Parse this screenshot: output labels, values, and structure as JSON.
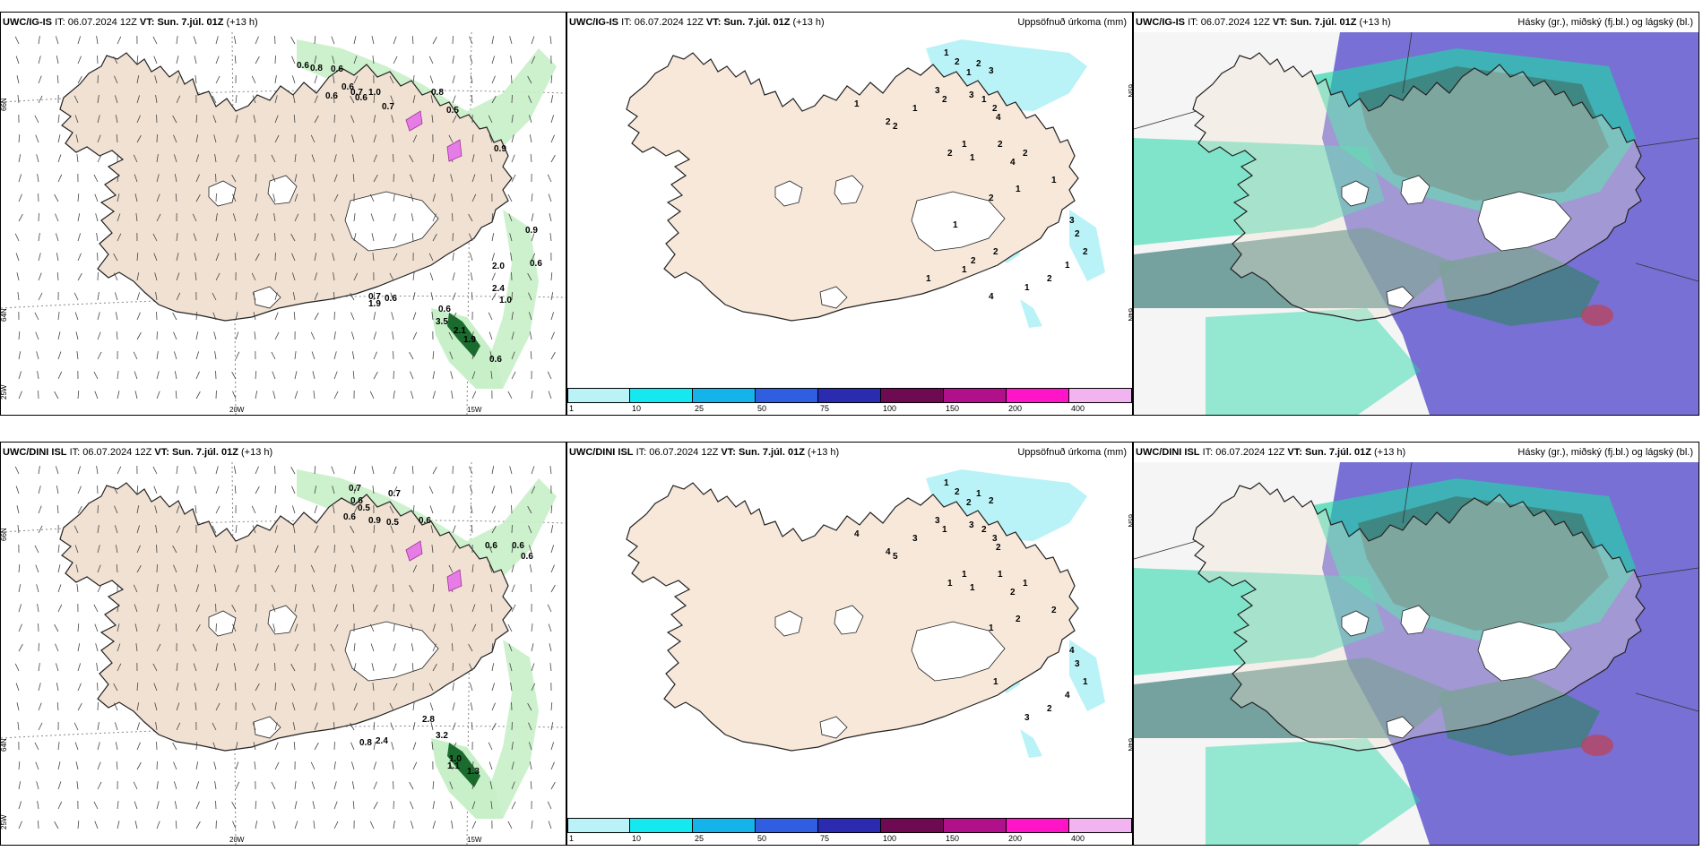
{
  "panels": [
    {
      "model": "UWC/IG-IS",
      "it_label": "IT:",
      "it_value": "06.07.2024 12Z",
      "vt_label": "VT:",
      "vt_value": "Sun. 7.júl. 01Z",
      "lead": "(+13 h)",
      "right_title": "",
      "kind": "wind",
      "lat_labels": [
        "66N",
        "64N",
        "25W"
      ],
      "lon_labels": [
        "20W",
        "15W"
      ],
      "values": [
        "0.6",
        "0.8",
        "0.6",
        "0.6",
        "0.7",
        "0.6",
        "0.6",
        "1.0",
        "0.7",
        "0.8",
        "0.5",
        "0.9",
        "0.9",
        "2.0",
        "0.6",
        "2.4",
        "1.0",
        "0.7",
        "0.6",
        "1.9",
        "0.6",
        "3.5",
        "2.1",
        "1.9",
        "0.6"
      ]
    },
    {
      "model": "UWC/IG-IS",
      "it_label": "IT:",
      "it_value": "06.07.2024 12Z",
      "vt_label": "VT:",
      "vt_value": "Sun. 7.júl. 01Z",
      "lead": "(+13 h)",
      "right_title": "Uppsöfnuð úrkoma (mm)",
      "kind": "precip",
      "lat_labels": [
        "65N",
        "64N"
      ],
      "values": [
        "1",
        "2",
        "1",
        "2",
        "3",
        "3",
        "1",
        "2",
        "3",
        "2",
        "4",
        "1",
        "2",
        "1",
        "2",
        "1",
        "2",
        "1",
        "2",
        "4",
        "2",
        "1",
        "1",
        "2",
        "3",
        "2",
        "2",
        "1",
        "2",
        "1",
        "2",
        "2",
        "1",
        "1",
        "4",
        "1"
      ]
    },
    {
      "model": "UWC/IG-IS",
      "it_label": "IT:",
      "it_value": "06.07.2024 12Z",
      "vt_label": "VT:",
      "vt_value": "Sun. 7.júl. 01Z",
      "lead": "(+13 h)",
      "right_title": "Hásky (gr.), miðský (fj.bl.) og lágský (bl.)",
      "kind": "cloud"
    },
    {
      "model": "UWC/DINI ISL",
      "it_label": "IT:",
      "it_value": "06.07.2024 12Z",
      "vt_label": "VT:",
      "vt_value": "Sun. 7.júl. 01Z",
      "lead": "(+13 h)",
      "right_title": "",
      "kind": "wind",
      "lat_labels": [
        "66N",
        "64N",
        "25W"
      ],
      "lon_labels": [
        "20W",
        "15W"
      ],
      "values": [
        "0.7",
        "0.7",
        "0.6",
        "0.5",
        "0.6",
        "0.9",
        "0.5",
        "0.6",
        "0.6",
        "0.6",
        "0.6",
        "0.8",
        "2.4",
        "2.8",
        "3.2",
        "1.0",
        "1.1",
        "1.3"
      ]
    },
    {
      "model": "UWC/DINI ISL",
      "it_label": "IT:",
      "it_value": "06.07.2024 12Z",
      "vt_label": "VT:",
      "vt_value": "Sun. 7.júl. 01Z",
      "lead": "(+13 h)",
      "right_title": "Uppsöfnuð úrkoma (mm)",
      "kind": "precip",
      "lat_labels": [
        "65N",
        "64N"
      ],
      "values": [
        "1",
        "2",
        "2",
        "1",
        "2",
        "3",
        "2",
        "3",
        "3",
        "1",
        "2",
        "3",
        "5",
        "4",
        "4",
        "1",
        "1",
        "1",
        "1",
        "2",
        "1",
        "2",
        "2",
        "1",
        "4",
        "3",
        "1",
        "4",
        "2",
        "3",
        "1"
      ]
    },
    {
      "model": "UWC/DINI ISL",
      "it_label": "IT:",
      "it_value": "06.07.2024 12Z",
      "vt_label": "VT:",
      "vt_value": "Sun. 7.júl. 01Z",
      "lead": "(+13 h)",
      "right_title": "Hásky (gr.), miðský (fj.bl.) og lágský (bl.)",
      "kind": "cloud"
    }
  ],
  "colorbar": {
    "ticks": [
      "1",
      "10",
      "25",
      "50",
      "75",
      "100",
      "150",
      "200",
      "400"
    ],
    "colors": [
      "#b9f3f7",
      "#16e8f0",
      "#14b4ea",
      "#2f5fe0",
      "#2b2bb0",
      "#6e0a52",
      "#b0108a",
      "#ff14c8",
      "#f2b4f0"
    ]
  },
  "colors": {
    "land": "#f0e1d2",
    "precip_light": "#b9f3f7",
    "wind_green_light": "#c8f0c8",
    "wind_green_dark": "#1c6b2e",
    "cloud_high": "#1fd6a6",
    "cloud_mid": "#3f7f7a",
    "cloud_low": "#6a62d0",
    "cloud_white": "#f5f5f5"
  }
}
